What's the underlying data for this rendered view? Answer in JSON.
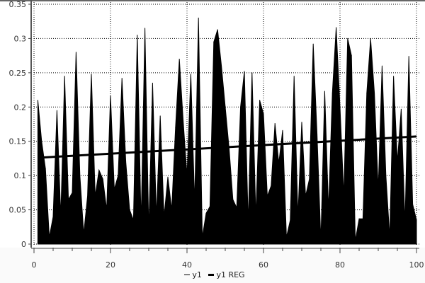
{
  "chart_data": {
    "type": "area",
    "title": "",
    "xlabel": "",
    "ylabel": "",
    "xlim": [
      0,
      100
    ],
    "ylim": [
      0,
      0.35
    ],
    "x_ticks": [
      "0",
      "20",
      "40",
      "60",
      "80",
      "100"
    ],
    "y_ticks": [
      "0",
      "0.05",
      "0.1",
      "0.15",
      "0.2",
      "0.25",
      "0.3",
      "0.35"
    ],
    "grid": true,
    "legend_placement": "bottom",
    "series": [
      {
        "name": "y1",
        "color": "#000000",
        "x_start": 1,
        "values": [
          0.21,
          0.15,
          0.11,
          0.01,
          0.04,
          0.195,
          0.04,
          0.245,
          0.065,
          0.075,
          0.28,
          0.1,
          0.015,
          0.07,
          0.248,
          0.07,
          0.108,
          0.095,
          0.05,
          0.217,
          0.08,
          0.1,
          0.242,
          0.12,
          0.05,
          0.035,
          0.305,
          0.03,
          0.315,
          0.02,
          0.235,
          0.04,
          0.187,
          0.04,
          0.098,
          0.05,
          0.17,
          0.27,
          0.18,
          0.1,
          0.248,
          0.06,
          0.33,
          0.01,
          0.045,
          0.055,
          0.295,
          0.313,
          0.26,
          0.2,
          0.14,
          0.065,
          0.053,
          0.2,
          0.252,
          0.03,
          0.25,
          0.04,
          0.21,
          0.19,
          0.07,
          0.085,
          0.176,
          0.118,
          0.166,
          0.01,
          0.035,
          0.245,
          0.04,
          0.178,
          0.07,
          0.095,
          0.292,
          0.16,
          0.005,
          0.223,
          0.05,
          0.22,
          0.316,
          0.2,
          0.07,
          0.3,
          0.275,
          0.005,
          0.037,
          0.037,
          0.22,
          0.3,
          0.22,
          0.08,
          0.26,
          0.1,
          0.01,
          0.245,
          0.12,
          0.197,
          0.03,
          0.274,
          0.058,
          0.035
        ]
      },
      {
        "name": "y1 REG",
        "color": "#000000",
        "type": "line",
        "x": [
          1,
          100
        ],
        "values": [
          0.126,
          0.157
        ]
      }
    ]
  }
}
